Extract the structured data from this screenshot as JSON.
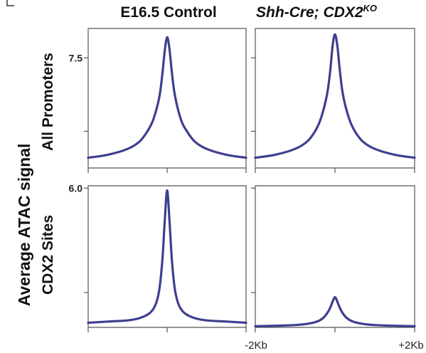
{
  "chart_data": {
    "type": "line",
    "titles": {
      "col1": "E16.5 Control",
      "col2_main": "Shh-Cre; CDX2",
      "col2_sup": "KO"
    },
    "ylabel": "Average ATAC signal",
    "row_labels": [
      "All Promoters",
      "CDX2 Sites"
    ],
    "x_tick_labels": [
      "-2Kb",
      "+2Kb"
    ],
    "panels": [
      {
        "row": "All Promoters",
        "column": "E16.5 Control",
        "ylim": [
          0,
          9.5
        ],
        "ytick_labels": [
          "7.5",
          ""
        ],
        "yticks": [
          7.5,
          2.5
        ],
        "xlim": [
          -2000,
          2000
        ],
        "x": [
          -2000,
          -1500,
          -1000,
          -700,
          -500,
          -350,
          -200,
          -120,
          -60,
          0,
          60,
          120,
          200,
          350,
          500,
          700,
          1000,
          1500,
          2000
        ],
        "y": [
          0.7,
          0.9,
          1.3,
          1.8,
          2.5,
          3.3,
          4.8,
          6.4,
          8.0,
          8.9,
          8.1,
          6.5,
          4.9,
          3.3,
          2.5,
          1.8,
          1.3,
          0.9,
          0.7
        ]
      },
      {
        "row": "All Promoters",
        "column": "Shh-Cre; CDX2KO",
        "ylim": [
          0,
          9.5
        ],
        "ytick_labels": [
          "",
          ""
        ],
        "yticks": [
          7.5,
          2.5
        ],
        "xlim": [
          -2000,
          2000
        ],
        "x": [
          -2000,
          -1500,
          -1000,
          -700,
          -500,
          -350,
          -200,
          -120,
          -60,
          0,
          60,
          120,
          200,
          350,
          500,
          700,
          1000,
          1500,
          2000
        ],
        "y": [
          0.7,
          0.9,
          1.3,
          1.8,
          2.5,
          3.4,
          5.0,
          6.6,
          8.3,
          9.1,
          8.3,
          6.7,
          5.0,
          3.4,
          2.5,
          1.8,
          1.3,
          0.9,
          0.7
        ]
      },
      {
        "row": "CDX2 Sites",
        "column": "E16.5 Control",
        "ylim": [
          0,
          6.1
        ],
        "ytick_labels": [
          "6.0",
          ""
        ],
        "yticks": [
          6.0,
          1.5
        ],
        "xlim": [
          -2000,
          2000
        ],
        "x": [
          -2000,
          -1500,
          -1000,
          -700,
          -450,
          -300,
          -200,
          -120,
          -60,
          0,
          60,
          120,
          200,
          300,
          450,
          700,
          1000,
          1500,
          2000
        ],
        "y": [
          0.2,
          0.25,
          0.3,
          0.4,
          0.6,
          0.95,
          1.6,
          2.9,
          4.6,
          5.9,
          4.6,
          2.9,
          1.6,
          0.95,
          0.6,
          0.4,
          0.3,
          0.25,
          0.2
        ]
      },
      {
        "row": "CDX2 Sites",
        "column": "Shh-Cre; CDX2KO",
        "ylim": [
          0,
          6.1
        ],
        "ytick_labels": [
          "",
          ""
        ],
        "yticks": [
          6.0,
          1.5
        ],
        "xlim": [
          -2000,
          2000
        ],
        "x": [
          -2000,
          -1500,
          -1000,
          -700,
          -450,
          -300,
          -200,
          -120,
          -50,
          0,
          50,
          120,
          200,
          300,
          450,
          700,
          1000,
          1500,
          2000
        ],
        "y": [
          0.05,
          0.07,
          0.1,
          0.15,
          0.25,
          0.4,
          0.6,
          0.85,
          1.15,
          1.3,
          1.15,
          0.85,
          0.6,
          0.4,
          0.25,
          0.15,
          0.1,
          0.07,
          0.05
        ]
      }
    ]
  }
}
